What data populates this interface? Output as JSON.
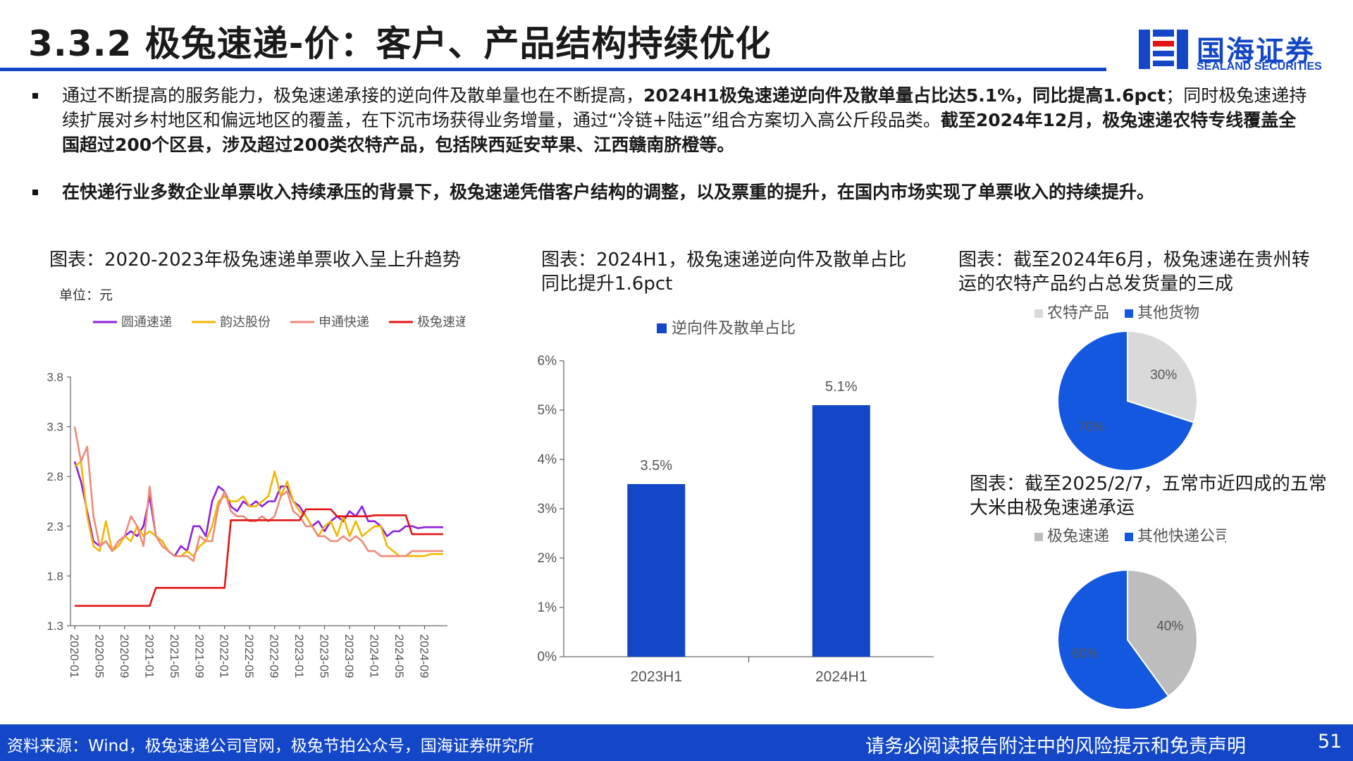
{
  "header": {
    "title": "3.3.2 极兔速递-价：客户、产品结构持续优化"
  },
  "logo": {
    "name_cn": "国海证券",
    "name_en": "SEALAND SECURITIES"
  },
  "bullets": [
    {
      "p1": "通过不断提高的服务能力，极兔速递承接的逆向件及散单量也在不断提高，",
      "p2": "2024H1极兔速递逆向件及散单量占比达5.1%，同比提高1.6pct",
      "p3": "；同时极兔速递持续扩展对乡村地区和偏远地区的覆盖，在下沉市场获得业务增量，通过“冷链+陆运”组合方案切入高公斤段品类。",
      "p4": "截至2024年12月，极兔速递农特专线覆盖全国超过200个区县，涉及超过200类农特产品，包括陕西延安苹果、江西赣南脐橙等。"
    },
    {
      "text": "在快递行业多数企业单票收入持续承压的背景下，极兔速递凭借客户结构的调整，以及票重的提升，在国内市场实现了单票收入的持续提升。"
    }
  ],
  "chart_data": [
    {
      "type": "line",
      "title": "图表：2020-2023年极兔速递单票收入呈上升趋势",
      "unit": "单位：元",
      "ylim": [
        1.3,
        3.8
      ],
      "yticks": [
        "1.3",
        "1.8",
        "2.3",
        "2.8",
        "3.3",
        "3.8"
      ],
      "x": [
        "2020-01",
        "2020-02",
        "2020-03",
        "2020-04",
        "2020-05",
        "2020-06",
        "2020-07",
        "2020-08",
        "2020-09",
        "2020-10",
        "2020-11",
        "2020-12",
        "2021-01",
        "2021-02",
        "2021-03",
        "2021-04",
        "2021-05",
        "2021-06",
        "2021-07",
        "2021-08",
        "2021-09",
        "2021-10",
        "2021-11",
        "2021-12",
        "2022-01",
        "2022-02",
        "2022-03",
        "2022-04",
        "2022-05",
        "2022-06",
        "2022-07",
        "2022-08",
        "2022-09",
        "2022-10",
        "2022-11",
        "2022-12",
        "2023-01",
        "2023-02",
        "2023-03",
        "2023-04",
        "2023-05",
        "2023-06",
        "2023-07",
        "2023-08",
        "2023-09",
        "2023-10",
        "2023-11",
        "2023-12",
        "2024-01",
        "2024-02",
        "2024-03",
        "2024-04",
        "2024-05",
        "2024-06",
        "2024-07",
        "2024-08",
        "2024-09",
        "2024-10",
        "2024-11",
        "2024-12"
      ],
      "xticks": [
        "2020-01",
        "2020-05",
        "2020-09",
        "2021-01",
        "2021-05",
        "2021-09",
        "2022-01",
        "2022-05",
        "2022-09",
        "2023-01",
        "2023-05",
        "2023-09",
        "2024-01",
        "2024-05",
        "2024-09"
      ],
      "legend_position": "top",
      "series": [
        {
          "name": "圆通速递",
          "color": "#8b1fe0",
          "values": [
            2.95,
            2.75,
            2.45,
            2.15,
            2.1,
            2.15,
            2.05,
            2.15,
            2.2,
            2.25,
            2.2,
            2.3,
            2.6,
            2.2,
            2.15,
            2.05,
            2.0,
            2.1,
            2.05,
            2.3,
            2.3,
            2.2,
            2.55,
            2.7,
            2.65,
            2.5,
            2.45,
            2.55,
            2.5,
            2.55,
            2.5,
            2.55,
            2.55,
            2.7,
            2.7,
            2.55,
            2.5,
            2.4,
            2.3,
            2.35,
            2.25,
            2.35,
            2.4,
            2.35,
            2.45,
            2.4,
            2.5,
            2.35,
            2.35,
            2.3,
            2.2,
            2.25,
            2.25,
            2.3,
            2.3,
            2.28,
            2.29,
            2.29,
            2.29,
            2.29
          ]
        },
        {
          "name": "韵达股份",
          "color": "#f2b700",
          "values": [
            2.9,
            2.95,
            2.4,
            2.1,
            2.05,
            2.35,
            2.05,
            2.1,
            2.2,
            2.15,
            2.3,
            2.2,
            2.25,
            2.2,
            2.15,
            2.05,
            2.0,
            2.0,
            2.05,
            2.0,
            2.1,
            2.15,
            2.3,
            2.55,
            2.6,
            2.55,
            2.55,
            2.6,
            2.5,
            2.5,
            2.55,
            2.6,
            2.85,
            2.6,
            2.75,
            2.55,
            2.45,
            2.4,
            2.3,
            2.2,
            2.3,
            2.35,
            2.2,
            2.4,
            2.2,
            2.35,
            2.2,
            2.25,
            2.3,
            2.3,
            2.1,
            2.05,
            2.0,
            2.0,
            2.0,
            2.0,
            2.0,
            2.02,
            2.02,
            2.02
          ]
        },
        {
          "name": "申通快递",
          "color": "#ee8a7a",
          "values": [
            3.3,
            2.95,
            3.1,
            2.4,
            2.1,
            2.15,
            2.05,
            2.15,
            2.2,
            2.4,
            2.3,
            2.1,
            2.7,
            2.2,
            2.1,
            2.05,
            2.0,
            2.0,
            2.0,
            1.95,
            2.2,
            2.15,
            2.15,
            2.5,
            2.65,
            2.45,
            2.4,
            2.4,
            2.35,
            2.35,
            2.4,
            2.35,
            2.4,
            2.6,
            2.65,
            2.45,
            2.4,
            2.3,
            2.3,
            2.2,
            2.2,
            2.15,
            2.15,
            2.2,
            2.15,
            2.2,
            2.15,
            2.05,
            2.05,
            2.0,
            2.0,
            2.0,
            2.0,
            2.0,
            2.05,
            2.05,
            2.05,
            2.05,
            2.05,
            2.05
          ]
        },
        {
          "name": "极兔速递",
          "color": "#e31414",
          "values": [
            1.5,
            1.5,
            1.5,
            1.5,
            1.5,
            1.5,
            1.5,
            1.5,
            1.5,
            1.5,
            1.5,
            1.5,
            1.5,
            1.68,
            1.68,
            1.68,
            1.68,
            1.68,
            1.68,
            1.68,
            1.68,
            1.68,
            1.68,
            1.68,
            1.68,
            2.36,
            2.36,
            2.36,
            2.36,
            2.36,
            2.36,
            2.36,
            2.36,
            2.36,
            2.36,
            2.36,
            2.36,
            2.47,
            2.47,
            2.47,
            2.47,
            2.47,
            2.4,
            2.4,
            2.4,
            2.4,
            2.4,
            2.4,
            2.41,
            2.41,
            2.41,
            2.41,
            2.41,
            2.41,
            2.22,
            2.22,
            2.22,
            2.22,
            2.22,
            2.22
          ]
        }
      ]
    },
    {
      "type": "bar",
      "title": "图表：2024H1，极兔速递逆向件及散单占比同比提升1.6pct",
      "legend": "逆向件及散单占比",
      "color": "#1347c7",
      "categories": [
        "2023H1",
        "2024H1"
      ],
      "values": [
        3.5,
        5.1
      ],
      "labels": [
        "3.5%",
        "5.1%"
      ],
      "ylim": [
        0,
        6
      ],
      "yticks": [
        "0%",
        "1%",
        "2%",
        "3%",
        "4%",
        "5%",
        "6%"
      ]
    },
    {
      "type": "pie",
      "title": "图表：截至2024年6月，极兔速递在贵州转运的农特产品约占总发货量的三成",
      "legend": [
        "农特产品",
        "其他货物"
      ],
      "values": [
        30,
        70
      ],
      "labels": [
        "30%",
        "70%"
      ],
      "colors": [
        "#d9d9d9",
        "#1458e0"
      ]
    },
    {
      "type": "pie",
      "title": "图表：截至2025/2/7，五常市近四成的五常大米由极兔速递承运",
      "legend": [
        "极兔速递",
        "其他快递公司"
      ],
      "values": [
        40,
        60
      ],
      "labels": [
        "40%",
        "60%"
      ],
      "colors": [
        "#bdbdbd",
        "#1458e0"
      ]
    }
  ],
  "footer": {
    "source": "资料来源：Wind，极兔速递公司官网，极兔节拍公众号，国海证券研究所",
    "disclaimer": "请务必阅读报告附注中的风险提示和免责声明",
    "page": "51"
  }
}
